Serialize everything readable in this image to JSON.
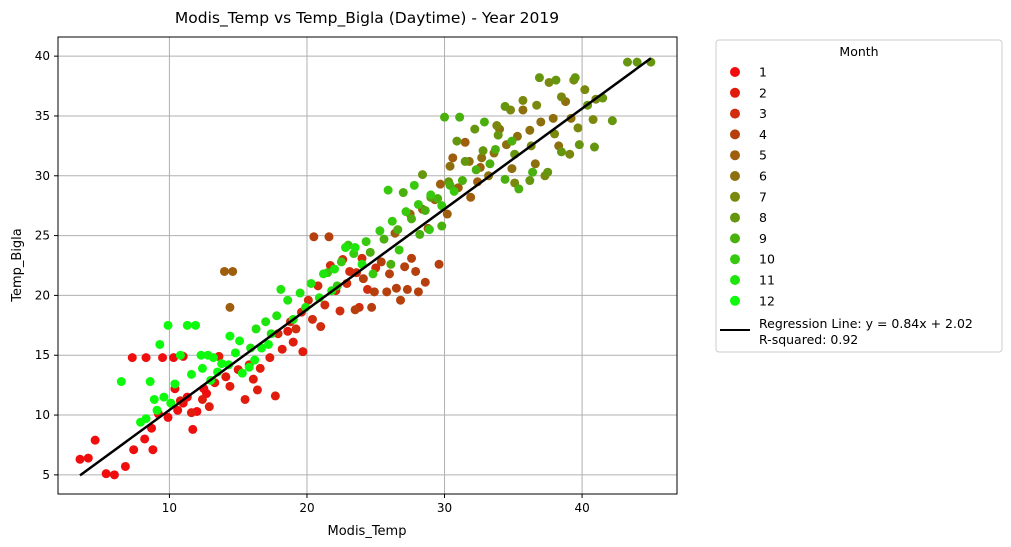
{
  "chart_data": {
    "type": "scatter",
    "title": "Modis_Temp vs Temp_Bigla (Daytime) - Year 2019",
    "xlabel": "Modis_Temp",
    "ylabel": "Temp_Bigla",
    "xlim": [
      1.9,
      46.9
    ],
    "ylim": [
      3.4,
      41.6
    ],
    "xticks": [
      10,
      20,
      30,
      40
    ],
    "yticks": [
      5,
      10,
      15,
      20,
      25,
      30,
      35,
      40
    ],
    "grid": true,
    "legend": {
      "title": "Month",
      "placement": "outside-right",
      "regression_label_1": "Regression Line: y = 0.84x + 2.02",
      "regression_label_2": "R-squared: 0.92"
    },
    "regression": {
      "slope": 0.84,
      "intercept": 2.02,
      "r_squared": 0.92,
      "x_range": [
        3.5,
        45.0
      ],
      "color": "#000000"
    },
    "series": [
      {
        "name": "1",
        "color": "#f00d0d",
        "points": [
          [
            3.5,
            6.3
          ],
          [
            4.1,
            6.4
          ],
          [
            4.6,
            7.9
          ],
          [
            5.4,
            5.1
          ],
          [
            6.0,
            5.0
          ],
          [
            6.8,
            5.7
          ],
          [
            7.4,
            7.1
          ],
          [
            8.2,
            8.0
          ],
          [
            8.7,
            8.9
          ],
          [
            9.2,
            10.1
          ],
          [
            9.9,
            9.8
          ],
          [
            10.6,
            10.4
          ],
          [
            11.3,
            11.5
          ],
          [
            12.0,
            10.3
          ],
          [
            12.7,
            11.8
          ],
          [
            7.3,
            14.8
          ],
          [
            8.3,
            14.8
          ],
          [
            9.5,
            14.8
          ],
          [
            10.3,
            14.8
          ],
          [
            11.0,
            14.9
          ],
          [
            11.7,
            8.8
          ],
          [
            8.8,
            7.1
          ],
          [
            10.4,
            12.2
          ],
          [
            11.0,
            11.0
          ],
          [
            12.5,
            12.2
          ]
        ]
      },
      {
        "name": "2",
        "color": "#e21c0d",
        "points": [
          [
            10.8,
            11.2
          ],
          [
            11.6,
            10.2
          ],
          [
            12.4,
            11.3
          ],
          [
            13.3,
            12.7
          ],
          [
            14.1,
            13.2
          ],
          [
            15.0,
            13.8
          ],
          [
            15.8,
            14.2
          ],
          [
            16.6,
            13.9
          ],
          [
            17.3,
            14.8
          ],
          [
            18.2,
            15.5
          ],
          [
            19.0,
            16.1
          ],
          [
            19.7,
            15.3
          ],
          [
            16.4,
            12.1
          ],
          [
            17.7,
            11.6
          ],
          [
            15.5,
            11.3
          ],
          [
            13.6,
            14.9
          ],
          [
            18.6,
            17.0
          ],
          [
            14.4,
            12.4
          ],
          [
            16.1,
            13.0
          ],
          [
            12.9,
            10.7
          ]
        ]
      },
      {
        "name": "3",
        "color": "#d12c0d",
        "points": [
          [
            17.9,
            16.8
          ],
          [
            18.8,
            17.8
          ],
          [
            19.6,
            18.6
          ],
          [
            20.4,
            18.0
          ],
          [
            21.3,
            19.2
          ],
          [
            22.1,
            20.4
          ],
          [
            22.9,
            21.0
          ],
          [
            23.6,
            21.9
          ],
          [
            24.4,
            20.5
          ],
          [
            21.7,
            22.5
          ],
          [
            22.6,
            23.0
          ],
          [
            20.1,
            19.6
          ],
          [
            19.2,
            17.2
          ],
          [
            23.8,
            19.0
          ],
          [
            25.0,
            22.3
          ],
          [
            21.0,
            17.4
          ],
          [
            22.4,
            18.7
          ],
          [
            24.0,
            23.1
          ],
          [
            20.8,
            20.8
          ],
          [
            23.1,
            22.0
          ]
        ]
      },
      {
        "name": "4",
        "color": "#b5400d",
        "points": [
          [
            20.5,
            24.9
          ],
          [
            21.6,
            24.9
          ],
          [
            24.7,
            19.0
          ],
          [
            25.8,
            20.3
          ],
          [
            26.5,
            20.6
          ],
          [
            27.3,
            20.5
          ],
          [
            28.1,
            20.3
          ],
          [
            27.1,
            22.4
          ],
          [
            27.9,
            22.0
          ],
          [
            26.0,
            21.8
          ],
          [
            24.9,
            20.3
          ],
          [
            23.5,
            18.8
          ],
          [
            26.8,
            19.6
          ],
          [
            25.4,
            22.8
          ],
          [
            28.6,
            21.1
          ],
          [
            27.6,
            23.1
          ],
          [
            29.6,
            22.6
          ],
          [
            24.1,
            21.4
          ]
        ]
      },
      {
        "name": "5",
        "color": "#9e5e0d",
        "points": [
          [
            14.0,
            22.0
          ],
          [
            14.6,
            22.0
          ],
          [
            14.4,
            19.0
          ],
          [
            26.4,
            25.2
          ],
          [
            27.5,
            26.8
          ],
          [
            28.4,
            27.2
          ],
          [
            29.3,
            28.0
          ],
          [
            30.2,
            26.8
          ],
          [
            31.0,
            29.0
          ],
          [
            31.9,
            28.2
          ],
          [
            32.6,
            30.7
          ],
          [
            30.6,
            31.5
          ],
          [
            29.7,
            29.3
          ],
          [
            28.8,
            25.6
          ],
          [
            31.5,
            32.8
          ],
          [
            32.4,
            29.5
          ]
        ]
      },
      {
        "name": "6",
        "color": "#8d700d",
        "points": [
          [
            31.8,
            31.2
          ],
          [
            32.7,
            31.5
          ],
          [
            33.6,
            31.9
          ],
          [
            34.5,
            32.6
          ],
          [
            35.3,
            33.3
          ],
          [
            36.2,
            33.8
          ],
          [
            37.0,
            34.5
          ],
          [
            37.9,
            34.8
          ],
          [
            38.8,
            36.2
          ],
          [
            33.2,
            30.0
          ],
          [
            34.9,
            30.6
          ],
          [
            36.6,
            31.0
          ],
          [
            38.3,
            32.5
          ],
          [
            39.2,
            34.8
          ],
          [
            35.7,
            35.5
          ],
          [
            30.4,
            30.8
          ],
          [
            34.0,
            33.9
          ]
        ]
      },
      {
        "name": "7",
        "color": "#7a890d",
        "points": [
          [
            33.8,
            34.2
          ],
          [
            34.8,
            35.5
          ],
          [
            35.7,
            36.3
          ],
          [
            36.7,
            35.9
          ],
          [
            37.6,
            37.8
          ],
          [
            38.5,
            36.6
          ],
          [
            39.4,
            38.0
          ],
          [
            40.2,
            37.2
          ],
          [
            41.0,
            36.4
          ],
          [
            38.0,
            33.5
          ],
          [
            39.7,
            34.0
          ],
          [
            36.3,
            32.5
          ],
          [
            40.8,
            34.7
          ],
          [
            37.3,
            30.0
          ],
          [
            35.1,
            29.4
          ],
          [
            39.1,
            31.8
          ]
        ]
      },
      {
        "name": "8",
        "color": "#65960d",
        "points": [
          [
            29.0,
            28.2
          ],
          [
            30.3,
            29.5
          ],
          [
            31.5,
            31.2
          ],
          [
            32.8,
            32.1
          ],
          [
            33.9,
            33.4
          ],
          [
            35.1,
            31.8
          ],
          [
            36.2,
            29.6
          ],
          [
            37.5,
            30.3
          ],
          [
            38.5,
            32.0
          ],
          [
            39.8,
            32.6
          ],
          [
            40.9,
            32.4
          ],
          [
            42.2,
            34.6
          ],
          [
            43.3,
            39.5
          ],
          [
            44.0,
            39.5
          ],
          [
            45.0,
            39.5
          ],
          [
            36.9,
            38.2
          ],
          [
            38.1,
            38.0
          ],
          [
            39.5,
            38.2
          ],
          [
            41.5,
            36.5
          ],
          [
            34.4,
            35.8
          ],
          [
            32.2,
            33.9
          ],
          [
            30.9,
            32.9
          ],
          [
            28.4,
            30.1
          ],
          [
            40.4,
            35.9
          ]
        ]
      },
      {
        "name": "9",
        "color": "#4ab00d",
        "points": [
          [
            24.6,
            23.6
          ],
          [
            25.6,
            24.7
          ],
          [
            26.6,
            25.5
          ],
          [
            27.6,
            26.4
          ],
          [
            28.6,
            27.1
          ],
          [
            29.5,
            28.1
          ],
          [
            30.4,
            29.2
          ],
          [
            31.3,
            29.6
          ],
          [
            32.3,
            30.5
          ],
          [
            33.3,
            31.0
          ],
          [
            34.4,
            29.7
          ],
          [
            35.4,
            28.9
          ],
          [
            36.4,
            30.3
          ],
          [
            30.0,
            34.9
          ],
          [
            31.1,
            34.9
          ],
          [
            32.9,
            34.5
          ],
          [
            27.0,
            28.6
          ],
          [
            28.2,
            25.1
          ],
          [
            29.8,
            25.8
          ],
          [
            26.1,
            22.6
          ],
          [
            33.7,
            32.2
          ],
          [
            34.9,
            32.9
          ]
        ]
      },
      {
        "name": "10",
        "color": "#37c90d",
        "points": [
          [
            21.5,
            21.9
          ],
          [
            22.5,
            22.8
          ],
          [
            23.4,
            23.5
          ],
          [
            24.3,
            24.5
          ],
          [
            25.3,
            25.4
          ],
          [
            26.2,
            26.2
          ],
          [
            27.2,
            27.0
          ],
          [
            28.1,
            27.6
          ],
          [
            29.0,
            28.4
          ],
          [
            23.0,
            24.2
          ],
          [
            24.8,
            21.8
          ],
          [
            26.7,
            23.8
          ],
          [
            28.9,
            25.5
          ],
          [
            25.9,
            28.8
          ],
          [
            27.8,
            29.2
          ],
          [
            22.2,
            20.8
          ],
          [
            29.8,
            27.5
          ],
          [
            30.7,
            28.7
          ]
        ]
      },
      {
        "name": "11",
        "color": "#1ee60d",
        "points": [
          [
            16.3,
            17.2
          ],
          [
            17.0,
            17.8
          ],
          [
            17.8,
            18.3
          ],
          [
            18.6,
            19.6
          ],
          [
            19.5,
            20.2
          ],
          [
            20.3,
            21.0
          ],
          [
            21.2,
            21.8
          ],
          [
            22.0,
            22.2
          ],
          [
            22.8,
            24.0
          ],
          [
            23.5,
            24.0
          ],
          [
            18.1,
            20.5
          ],
          [
            19.9,
            19.0
          ],
          [
            20.9,
            19.8
          ],
          [
            21.8,
            20.4
          ],
          [
            17.4,
            16.8
          ],
          [
            15.9,
            15.6
          ],
          [
            24.0,
            22.6
          ],
          [
            19.0,
            18.0
          ]
        ]
      },
      {
        "name": "12",
        "color": "#0dfa0d",
        "points": [
          [
            6.5,
            12.8
          ],
          [
            7.9,
            9.4
          ],
          [
            8.3,
            9.7
          ],
          [
            8.9,
            11.3
          ],
          [
            9.6,
            11.5
          ],
          [
            9.3,
            15.9
          ],
          [
            9.9,
            17.5
          ],
          [
            10.8,
            15.0
          ],
          [
            11.3,
            17.5
          ],
          [
            11.9,
            17.5
          ],
          [
            12.3,
            15.0
          ],
          [
            12.8,
            15.0
          ],
          [
            13.2,
            14.8
          ],
          [
            13.8,
            14.3
          ],
          [
            14.3,
            14.2
          ],
          [
            14.8,
            15.2
          ],
          [
            15.3,
            13.5
          ],
          [
            15.8,
            14.0
          ],
          [
            16.2,
            14.6
          ],
          [
            16.7,
            15.6
          ],
          [
            17.2,
            15.9
          ],
          [
            14.4,
            16.6
          ],
          [
            13.5,
            13.6
          ],
          [
            10.4,
            12.6
          ],
          [
            8.6,
            12.8
          ],
          [
            11.6,
            13.4
          ],
          [
            15.1,
            16.2
          ],
          [
            12.4,
            13.9
          ],
          [
            9.1,
            10.4
          ],
          [
            10.1,
            11.0
          ],
          [
            13.0,
            12.9
          ]
        ]
      }
    ]
  }
}
